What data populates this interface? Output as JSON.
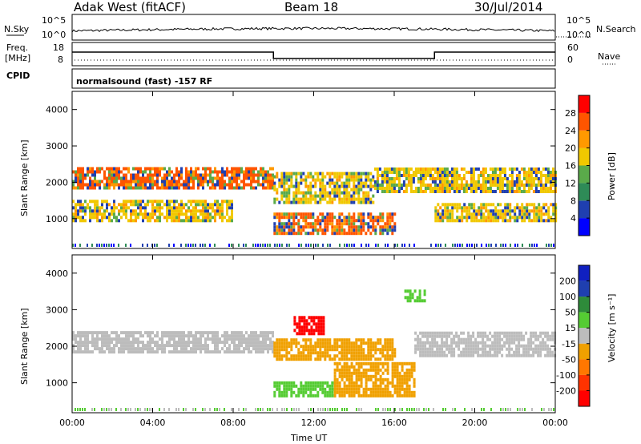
{
  "header": {
    "station": "Adak West (fitACF)",
    "beam": "Beam 18",
    "date": "30/Jul/2014"
  },
  "noise_panel": {
    "left_label": "N.Sky",
    "right_label": "N.Search",
    "ticks_left": [
      "10^5",
      "10^0"
    ],
    "ticks_right": [
      "10^5",
      "10^0"
    ]
  },
  "freq_panel": {
    "left_label": "Freq.",
    "unit": "[MHz]",
    "right_label": "Nave",
    "ticks_left": [
      "18",
      "8"
    ],
    "ticks_right": [
      "60",
      "0"
    ]
  },
  "cpid": {
    "label": "CPID",
    "program": "normalsound (fast) -157 RF"
  },
  "colors": {
    "power_scale": [
      "#0000ff",
      "#1f3fb0",
      "#2e8b57",
      "#5aaa4a",
      "#f0c800",
      "#ff9900",
      "#ff5500",
      "#ff0000"
    ],
    "velocity_scale": [
      "#1020c0",
      "#1f3fb0",
      "#2e8b3a",
      "#55cc33",
      "#bcbcbc",
      "#f0a000",
      "#ff7700",
      "#ff3300",
      "#ff0000"
    ],
    "gray": "#bcbcbc"
  },
  "chart_data": [
    {
      "type": "heatmap",
      "title": "Power",
      "ylabel": "Slant Range [km]",
      "xlabel": "",
      "ylim": [
        180,
        4500
      ],
      "xlim": [
        0,
        24
      ],
      "yticks": [
        "1000",
        "2000",
        "3000",
        "4000"
      ],
      "xticks": [
        "00:00",
        "04:00",
        "08:00",
        "12:00",
        "16:00",
        "20:00",
        "00:00"
      ],
      "colorbar": {
        "label": "Power [dB]",
        "ticks": [
          "4",
          "8",
          "12",
          "16",
          "20",
          "24",
          "28"
        ]
      },
      "bands": [
        {
          "t0": 0,
          "t1": 10,
          "r0": 1800,
          "r1": 2400,
          "level": "high"
        },
        {
          "t0": 10,
          "t1": 15,
          "r0": 1400,
          "r1": 2200,
          "level": "medium"
        },
        {
          "t0": 15,
          "t1": 24,
          "r0": 1700,
          "r1": 2400,
          "level": "medium"
        },
        {
          "t0": 0,
          "t1": 8,
          "r0": 900,
          "r1": 1500,
          "level": "medium"
        },
        {
          "t0": 10,
          "t1": 16,
          "r0": 550,
          "r1": 1100,
          "level": "high"
        },
        {
          "t0": 18,
          "t1": 24,
          "r0": 900,
          "r1": 1400,
          "level": "medium"
        }
      ]
    },
    {
      "type": "heatmap",
      "title": "Velocity",
      "ylabel": "Slant Range [km]",
      "xlabel": "Time UT",
      "ylim": [
        180,
        4500
      ],
      "xlim": [
        0,
        24
      ],
      "yticks": [
        "1000",
        "2000",
        "3000",
        "4000"
      ],
      "xticks": [
        "00:00",
        "04:00",
        "08:00",
        "12:00",
        "16:00",
        "20:00",
        "00:00"
      ],
      "colorbar": {
        "label": "Velocity [m s⁻¹]",
        "ticks": [
          "200",
          "100",
          "50",
          "15",
          "-15",
          "-50",
          "-100",
          "-200"
        ]
      },
      "bands": [
        {
          "t0": 0,
          "t1": 10,
          "r0": 1800,
          "r1": 2400,
          "v": 0
        },
        {
          "t0": 10,
          "t1": 16,
          "r0": 1600,
          "r1": 2200,
          "v": -40
        },
        {
          "t0": 11,
          "t1": 12.5,
          "r0": 2300,
          "r1": 2800,
          "v": -200
        },
        {
          "t0": 10,
          "t1": 13,
          "r0": 600,
          "r1": 1000,
          "v": 40
        },
        {
          "t0": 13,
          "t1": 17,
          "r0": 600,
          "r1": 1500,
          "v": -60
        },
        {
          "t0": 17,
          "t1": 24,
          "r0": 1700,
          "r1": 2400,
          "v": 0
        },
        {
          "t0": 16.5,
          "t1": 17.5,
          "r0": 3200,
          "r1": 3500,
          "v": 40
        }
      ]
    }
  ]
}
